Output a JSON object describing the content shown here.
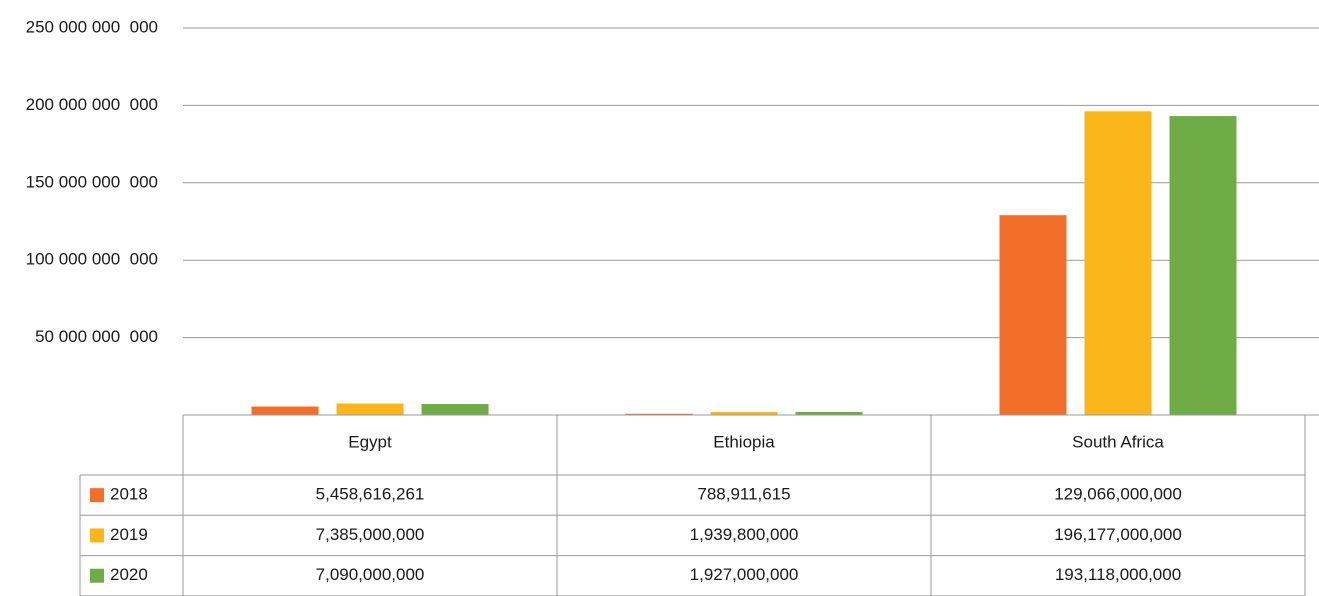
{
  "chart_data": {
    "type": "bar",
    "categories": [
      "Egypt",
      "Ethiopia",
      "South Africa"
    ],
    "series": [
      {
        "name": "2018",
        "color": "#f26f2a",
        "values": [
          5458616261,
          788911615,
          129066000000
        ],
        "value_labels": [
          "5,458,616,261",
          "788,911,615",
          "129,066,000,000"
        ]
      },
      {
        "name": "2019",
        "color": "#fbb61b",
        "values": [
          7385000000,
          1939800000,
          196177000000
        ],
        "value_labels": [
          "7,385,000,000",
          "1,939,800,000",
          "196,177,000,000"
        ]
      },
      {
        "name": "2020",
        "color": "#6fac46",
        "values": [
          7090000000,
          1927000000,
          193118000000
        ],
        "value_labels": [
          "7,090,000,000",
          "1,927,000,000",
          "193,118,000,000"
        ]
      }
    ],
    "ylim": [
      0,
      250000000000
    ],
    "yticks": [
      {
        "value": 50000000000,
        "label": "50 000 000  000"
      },
      {
        "value": 100000000000,
        "label": "100 000 000  000"
      },
      {
        "value": 150000000000,
        "label": "150 000 000  000"
      },
      {
        "value": 200000000000,
        "label": "200 000 000  000"
      },
      {
        "value": 250000000000,
        "label": "250 000 000  000"
      }
    ],
    "grid": true
  }
}
